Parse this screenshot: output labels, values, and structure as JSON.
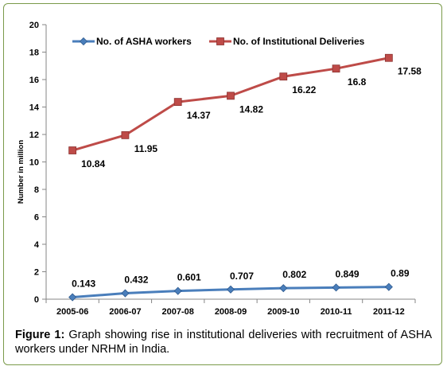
{
  "chart_data": {
    "type": "line",
    "categories": [
      "2005-06",
      "2006-07",
      "2007-08",
      "2008-09",
      "2009-10",
      "2010-11",
      "2011-12"
    ],
    "ylabel": "Number in million",
    "ylim": [
      0,
      20
    ],
    "yticks": [
      0,
      2,
      4,
      6,
      8,
      10,
      12,
      14,
      16,
      18,
      20
    ],
    "grid": false,
    "legend_position": "top-left",
    "series": [
      {
        "name": "No. of ASHA workers",
        "values": [
          0.143,
          0.432,
          0.601,
          0.707,
          0.802,
          0.849,
          0.89
        ],
        "labels": [
          "0.143",
          "0.432",
          "0.601",
          "0.707",
          "0.802",
          "0.849",
          "0.89"
        ],
        "color": "#4a7ebb",
        "marker": "diamond"
      },
      {
        "name": "No. of Institutional Deliveries",
        "values": [
          10.84,
          11.95,
          14.37,
          14.82,
          16.22,
          16.8,
          17.58
        ],
        "labels": [
          "10.84",
          "11.95",
          "14.37",
          "14.82",
          "16.22",
          "16.8",
          "17.58"
        ],
        "color": "#be4b48",
        "marker": "square"
      }
    ]
  },
  "caption": {
    "label": "Figure 1:",
    "text": " Graph showing rise in institutional deliveries with recruitment of ASHA workers under NRHM in India."
  }
}
